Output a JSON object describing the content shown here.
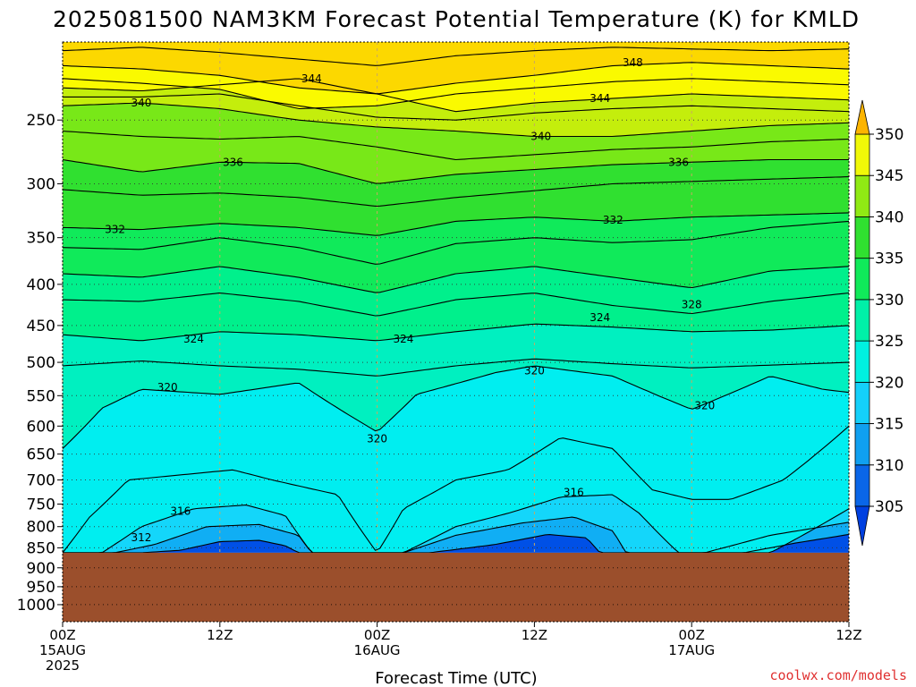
{
  "title": "2025081500 NAM3KM Forecast Potential Temperature (K) for KMLD",
  "credit": "coolwx.com/models",
  "colors": {
    "ground": "#9b4f2c",
    "bands": [
      "#0050e6",
      "#0a82ee",
      "#10aef4",
      "#14d6fa",
      "#00eef0",
      "#00f0c0",
      "#00f08c",
      "#10ea5a",
      "#30e030",
      "#78e818",
      "#c4ee0c",
      "#fafa00",
      "#fcd800"
    ]
  },
  "chart_data": {
    "type": "contour",
    "title": "2025081500 NAM3KM Forecast Potential Temperature (K) for KMLD",
    "xlabel": "Forecast Time (UTC)",
    "ylabel": "",
    "x_ticks": [
      {
        "hour": 0,
        "line1": "00Z",
        "line2": "15AUG",
        "line3": "2025"
      },
      {
        "hour": 12,
        "line1": "12Z",
        "line2": "",
        "line3": ""
      },
      {
        "hour": 24,
        "line1": "00Z",
        "line2": "16AUG",
        "line3": ""
      },
      {
        "hour": 36,
        "line1": "12Z",
        "line2": "",
        "line3": ""
      },
      {
        "hour": 48,
        "line1": "00Z",
        "line2": "17AUG",
        "line3": ""
      },
      {
        "hour": 60,
        "line1": "12Z",
        "line2": "",
        "line3": ""
      }
    ],
    "xlim": [
      0,
      60
    ],
    "y_ticks": [
      250,
      300,
      350,
      400,
      450,
      500,
      550,
      600,
      650,
      700,
      750,
      800,
      850,
      900,
      950,
      1000
    ],
    "y_scale": "log-pressure",
    "ylim": [
      1050,
      200
    ],
    "surface_pressure": 862,
    "colorbar": {
      "ticks": [
        350,
        345,
        340,
        335,
        330,
        325,
        320,
        315,
        310,
        305
      ],
      "levels": [
        305,
        310,
        315,
        320,
        325,
        330,
        335,
        340,
        345,
        350
      ]
    },
    "contour_labels": [
      {
        "value": "348",
        "hour": 43.5,
        "p": 212
      },
      {
        "value": "344",
        "hour": 19,
        "p": 222
      },
      {
        "value": "344",
        "hour": 41,
        "p": 235
      },
      {
        "value": "340",
        "hour": 6,
        "p": 238
      },
      {
        "value": "340",
        "hour": 36.5,
        "p": 262
      },
      {
        "value": "336",
        "hour": 13,
        "p": 282
      },
      {
        "value": "336",
        "hour": 47,
        "p": 282
      },
      {
        "value": "332",
        "hour": 4,
        "p": 342
      },
      {
        "value": "332",
        "hour": 42,
        "p": 333
      },
      {
        "value": "328",
        "hour": 48,
        "p": 424
      },
      {
        "value": "324",
        "hour": 10,
        "p": 468
      },
      {
        "value": "324",
        "hour": 26,
        "p": 468
      },
      {
        "value": "324",
        "hour": 41,
        "p": 440
      },
      {
        "value": "320",
        "hour": 8,
        "p": 537
      },
      {
        "value": "320",
        "hour": 36,
        "p": 512
      },
      {
        "value": "320",
        "hour": 49,
        "p": 566
      },
      {
        "value": "320",
        "hour": 24,
        "p": 622
      },
      {
        "value": "316",
        "hour": 9,
        "p": 765
      },
      {
        "value": "316",
        "hour": 39,
        "p": 725
      },
      {
        "value": "312",
        "hour": 6,
        "p": 825
      }
    ],
    "isentropes": [
      {
        "theta": 350,
        "hours": [
          0,
          6,
          12,
          18,
          24,
          30,
          36,
          42,
          48,
          54,
          60
        ],
        "p": [
          205,
          203,
          206,
          210,
          214,
          208,
          205,
          203,
          204,
          205,
          204
        ]
      },
      {
        "theta": 348,
        "hours": [
          0,
          6,
          12,
          18,
          24,
          30,
          36,
          42,
          48,
          54,
          60
        ],
        "p": [
          214,
          216,
          220,
          228,
          232,
          225,
          220,
          214,
          212,
          214,
          216
        ]
      },
      {
        "theta": 346,
        "hours": [
          0,
          6,
          12,
          18,
          24,
          30,
          36,
          42,
          48,
          54,
          60
        ],
        "p": [
          222,
          225,
          229,
          242,
          240,
          232,
          228,
          224,
          222,
          224,
          226
        ]
      },
      {
        "theta": 344,
        "hours": [
          0,
          6,
          12,
          18,
          24,
          30,
          36,
          42,
          48,
          54,
          60
        ],
        "p": [
          228,
          230,
          226,
          222,
          232,
          244,
          238,
          235,
          232,
          234,
          236
        ]
      },
      {
        "theta": 342,
        "hours": [
          0,
          6,
          12,
          18,
          24,
          30,
          36,
          42,
          48,
          54,
          60
        ],
        "p": [
          234,
          234,
          232,
          240,
          248,
          250,
          245,
          242,
          240,
          242,
          244
        ]
      },
      {
        "theta": 340,
        "hours": [
          0,
          6,
          12,
          18,
          24,
          30,
          36,
          42,
          48,
          54,
          60
        ],
        "p": [
          240,
          238,
          242,
          250,
          255,
          258,
          262,
          262,
          258,
          254,
          252
        ]
      },
      {
        "theta": 338,
        "hours": [
          0,
          6,
          12,
          18,
          24,
          30,
          36,
          42,
          48,
          54,
          60
        ],
        "p": [
          258,
          262,
          264,
          262,
          270,
          280,
          276,
          272,
          270,
          266,
          264
        ]
      },
      {
        "theta": 336,
        "hours": [
          0,
          6,
          12,
          18,
          24,
          30,
          36,
          42,
          48,
          54,
          60
        ],
        "p": [
          280,
          290,
          282,
          283,
          300,
          292,
          288,
          284,
          282,
          280,
          280
        ]
      },
      {
        "theta": 334,
        "hours": [
          0,
          6,
          12,
          18,
          24,
          30,
          36,
          42,
          48,
          54,
          60
        ],
        "p": [
          305,
          310,
          308,
          312,
          320,
          312,
          306,
          300,
          298,
          296,
          294
        ]
      },
      {
        "theta": 332,
        "hours": [
          0,
          6,
          12,
          18,
          24,
          30,
          36,
          42,
          48,
          54,
          60
        ],
        "p": [
          340,
          342,
          336,
          340,
          348,
          334,
          330,
          334,
          330,
          328,
          326
        ]
      },
      {
        "theta": 330,
        "hours": [
          0,
          6,
          12,
          18,
          24,
          30,
          36,
          42,
          48,
          54,
          60
        ],
        "p": [
          360,
          362,
          350,
          360,
          378,
          356,
          350,
          355,
          352,
          340,
          334
        ]
      },
      {
        "theta": 328,
        "hours": [
          0,
          6,
          12,
          18,
          24,
          30,
          36,
          42,
          48,
          54,
          60
        ],
        "p": [
          388,
          392,
          380,
          392,
          410,
          388,
          380,
          392,
          404,
          385,
          380
        ]
      },
      {
        "theta": 326,
        "hours": [
          0,
          6,
          12,
          18,
          24,
          30,
          36,
          42,
          48,
          54,
          60
        ],
        "p": [
          418,
          420,
          410,
          420,
          438,
          418,
          410,
          425,
          435,
          420,
          410
        ]
      },
      {
        "theta": 324,
        "hours": [
          0,
          6,
          12,
          18,
          24,
          30,
          36,
          42,
          48,
          54,
          60
        ],
        "p": [
          462,
          470,
          458,
          462,
          470,
          458,
          448,
          452,
          458,
          456,
          450
        ]
      },
      {
        "theta": 322,
        "hours": [
          0,
          6,
          12,
          18,
          24,
          30,
          36,
          42,
          48,
          54,
          60
        ],
        "p": [
          505,
          498,
          505,
          510,
          520,
          505,
          495,
          502,
          508,
          504,
          500
        ]
      },
      {
        "theta": 320,
        "hours": [
          0,
          3,
          6,
          12,
          18,
          24,
          27,
          33,
          36,
          42,
          48,
          54,
          58,
          60
        ],
        "p": [
          640,
          570,
          540,
          548,
          530,
          610,
          548,
          515,
          505,
          520,
          572,
          520,
          540,
          545
        ]
      },
      {
        "theta": 318,
        "hours": [
          0,
          2,
          5,
          9,
          13,
          16,
          21,
          24,
          26,
          30,
          34,
          38,
          42,
          45,
          48,
          51,
          55,
          60
        ],
        "p": [
          862,
          780,
          700,
          690,
          680,
          700,
          730,
          862,
          760,
          700,
          680,
          620,
          640,
          720,
          740,
          740,
          700,
          600
        ]
      },
      {
        "theta": 316,
        "hours": [
          3,
          6,
          10,
          14,
          17,
          19,
          24,
          26,
          30,
          34,
          38,
          42,
          44,
          47,
          54,
          60
        ],
        "p": [
          862,
          800,
          760,
          752,
          775,
          862,
          862,
          862,
          800,
          770,
          735,
          730,
          770,
          862,
          862,
          760
        ]
      },
      {
        "theta": 312,
        "hours": [
          4,
          7,
          11,
          15,
          18,
          19,
          26,
          30,
          35,
          39,
          42,
          43,
          49,
          54,
          60
        ],
        "p": [
          862,
          842,
          800,
          795,
          820,
          862,
          862,
          820,
          792,
          778,
          810,
          862,
          862,
          820,
          790
        ]
      },
      {
        "theta": 308,
        "hours": [
          6,
          9,
          12,
          15,
          17,
          18,
          28,
          33,
          37,
          40,
          41,
          52,
          56,
          60
        ],
        "p": [
          862,
          856,
          835,
          832,
          845,
          862,
          862,
          842,
          818,
          826,
          862,
          862,
          838,
          818
        ]
      }
    ]
  }
}
